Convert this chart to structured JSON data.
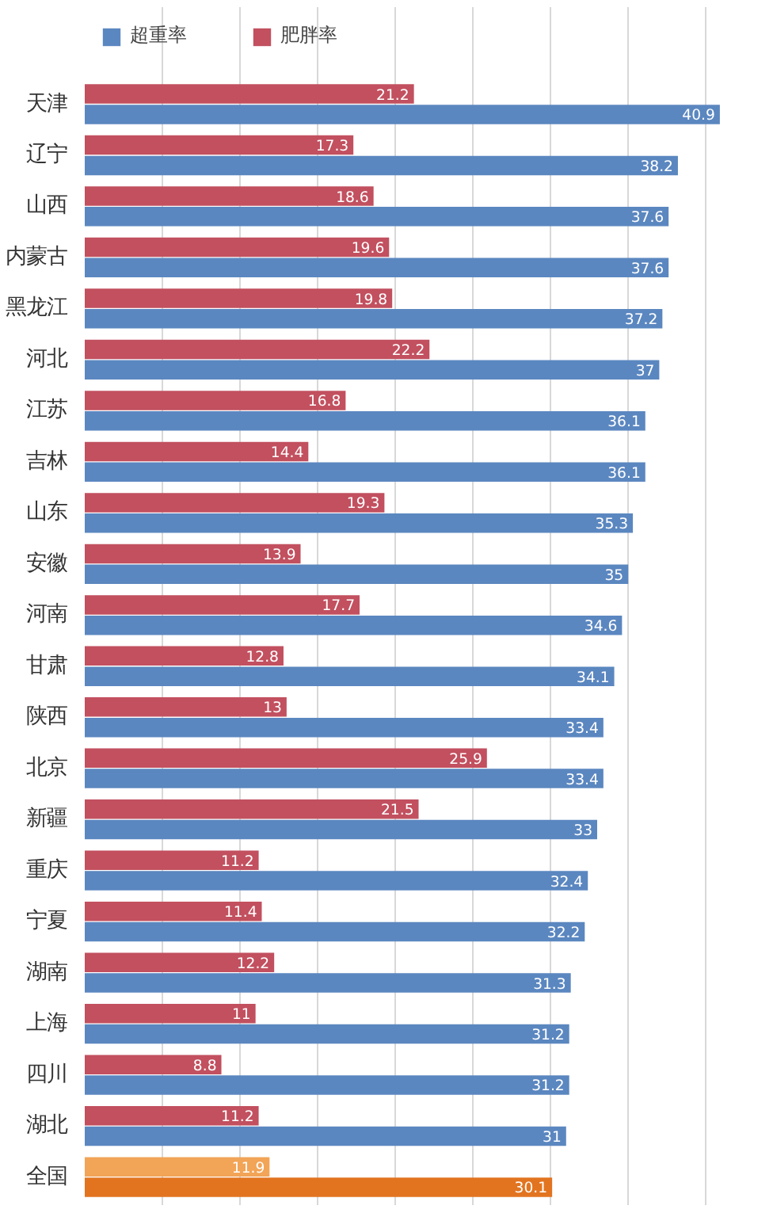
{
  "chart_data": {
    "type": "bar",
    "orientation": "horizontal",
    "categories": [
      "天津",
      "辽宁",
      "山西",
      "内蒙古",
      "黑龙江",
      "河北",
      "江苏",
      "吉林",
      "山东",
      "安徽",
      "河南",
      "甘肃",
      "陕西",
      "北京",
      "新疆",
      "重庆",
      "宁夏",
      "湖南",
      "上海",
      "四川",
      "湖北",
      "全国"
    ],
    "series": [
      {
        "name": "超重率",
        "color": "#5b87c0",
        "colors": [
          "#5b87c0",
          "#5b87c0",
          "#5b87c0",
          "#5b87c0",
          "#5b87c0",
          "#5b87c0",
          "#5b87c0",
          "#5b87c0",
          "#5b87c0",
          "#5b87c0",
          "#5b87c0",
          "#5b87c0",
          "#5b87c0",
          "#5b87c0",
          "#5b87c0",
          "#5b87c0",
          "#5b87c0",
          "#5b87c0",
          "#5b87c0",
          "#5b87c0",
          "#5b87c0",
          "#e27420"
        ],
        "values": [
          40.9,
          38.2,
          37.6,
          37.6,
          37.2,
          37,
          36.1,
          36.1,
          35.3,
          35,
          34.6,
          34.1,
          33.4,
          33.4,
          33,
          32.4,
          32.2,
          31.3,
          31.2,
          31.2,
          31,
          30.1
        ]
      },
      {
        "name": "肥胖率",
        "color": "#c2505f",
        "colors": [
          "#c2505f",
          "#c2505f",
          "#c2505f",
          "#c2505f",
          "#c2505f",
          "#c2505f",
          "#c2505f",
          "#c2505f",
          "#c2505f",
          "#c2505f",
          "#c2505f",
          "#c2505f",
          "#c2505f",
          "#c2505f",
          "#c2505f",
          "#c2505f",
          "#c2505f",
          "#c2505f",
          "#c2505f",
          "#c2505f",
          "#c2505f",
          "#f2a457"
        ],
        "values": [
          21.2,
          17.3,
          18.6,
          19.6,
          19.8,
          22.2,
          16.8,
          14.4,
          19.3,
          13.9,
          17.7,
          12.8,
          13,
          25.9,
          21.5,
          11.2,
          11.4,
          12.2,
          11,
          8.8,
          11.2,
          11.9
        ]
      }
    ],
    "tick_labels": "y",
    "grid": "x",
    "legend": "top left",
    "data_labels": true
  }
}
